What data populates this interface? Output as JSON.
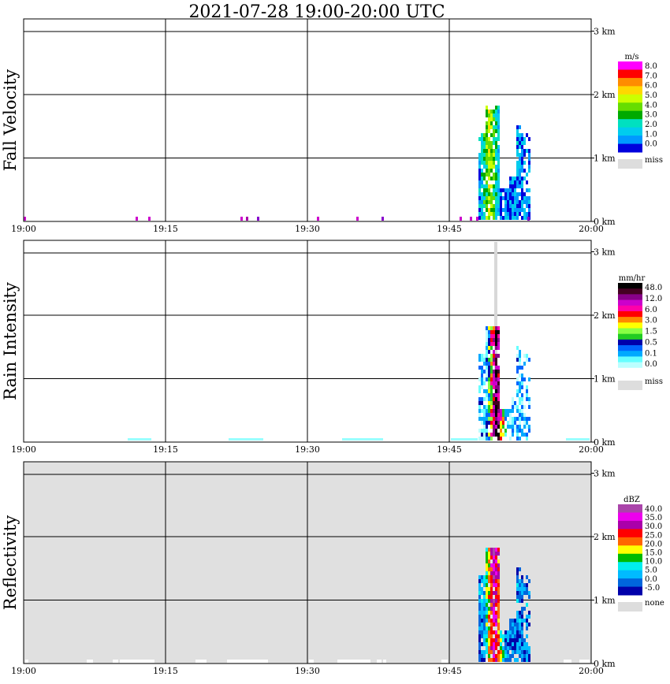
{
  "title": "2021-07-28   19:00-20:00 UTC",
  "time_ticks": [
    "19:00",
    "19:15",
    "19:30",
    "19:45",
    "20:00"
  ],
  "height_ticks": [
    "0 km",
    "1 km",
    "2 km",
    "3 km"
  ],
  "panels": [
    {
      "ylabel": "Fall Velocity",
      "colorbar_unit": "m/s",
      "colorbar_labels": [
        "8.0",
        "7.0",
        "6.0",
        "5.0",
        "4.0",
        "3.0",
        "2.0",
        "1.0",
        "0.0"
      ],
      "colorbar_colors": [
        "#ff00ff",
        "#ff0000",
        "#ff8c00",
        "#ffd700",
        "#ccff00",
        "#66dd00",
        "#00aa00",
        "#00e0c0",
        "#00ccee",
        "#0099ff",
        "#0000dd"
      ],
      "missing_label": "miss",
      "background": "#ffffff"
    },
    {
      "ylabel": "Rain Intensity",
      "colorbar_unit": "mm/hr",
      "colorbar_labels": [
        "48.0",
        "12.0",
        "6.0",
        "3.0",
        "1.5",
        "0.5",
        "0.1",
        "0.0"
      ],
      "colorbar_colors": [
        "#000000",
        "#440022",
        "#880088",
        "#cc00cc",
        "#ff00aa",
        "#ff0000",
        "#ff8800",
        "#ffff00",
        "#88ff44",
        "#22cc22",
        "#0000aa",
        "#0066ff",
        "#00aaff",
        "#66ffff",
        "#bbffff",
        "#ffffff"
      ],
      "missing_label": "miss",
      "background": "#ffffff"
    },
    {
      "ylabel": "Reflectivity",
      "colorbar_unit": "dBZ",
      "colorbar_labels": [
        "40.0",
        "35.0",
        "30.0",
        "25.0",
        "20.0",
        "15.0",
        "10.0",
        "5.0",
        "0.0",
        "-5.0"
      ],
      "colorbar_colors": [
        "#aa44aa",
        "#ee00ee",
        "#aa00aa",
        "#ff0000",
        "#ff6600",
        "#ffff00",
        "#00bb00",
        "#00eeee",
        "#00bbff",
        "#0066dd",
        "#0000aa"
      ],
      "missing_label": "none",
      "background": "#e0e0e0"
    }
  ],
  "chart_data": [
    {
      "type": "heatmap",
      "ylabel": "Fall Velocity",
      "unit": "m/s",
      "x_range": [
        "19:00",
        "20:00"
      ],
      "y_range_km": [
        0,
        3.2
      ],
      "feature": {
        "start": "19:46",
        "end": "19:54",
        "min_height_km": 0,
        "max_height_km": 1.8,
        "values_m_s": [
          0,
          1,
          2,
          3,
          4,
          5,
          6,
          7,
          8
        ]
      }
    },
    {
      "type": "heatmap",
      "ylabel": "Rain Intensity",
      "unit": "mm/hr",
      "x_range": [
        "19:00",
        "20:00"
      ],
      "y_range_km": [
        0,
        3.2
      ],
      "feature": {
        "start": "19:46",
        "end": "19:54",
        "min_height_km": 0,
        "max_height_km": 1.8,
        "values_mm_hr": [
          0.1,
          0.5,
          1.5,
          3,
          6,
          12,
          48
        ]
      }
    },
    {
      "type": "heatmap",
      "ylabel": "Reflectivity",
      "unit": "dBZ",
      "x_range": [
        "19:00",
        "20:00"
      ],
      "y_range_km": [
        0,
        3.2
      ],
      "feature": {
        "start": "19:47",
        "end": "19:54",
        "min_height_km": 0,
        "max_height_km": 1.8,
        "values_dbz": [
          -5,
          0,
          5,
          10,
          15,
          20,
          25,
          30,
          35,
          40
        ]
      }
    }
  ]
}
